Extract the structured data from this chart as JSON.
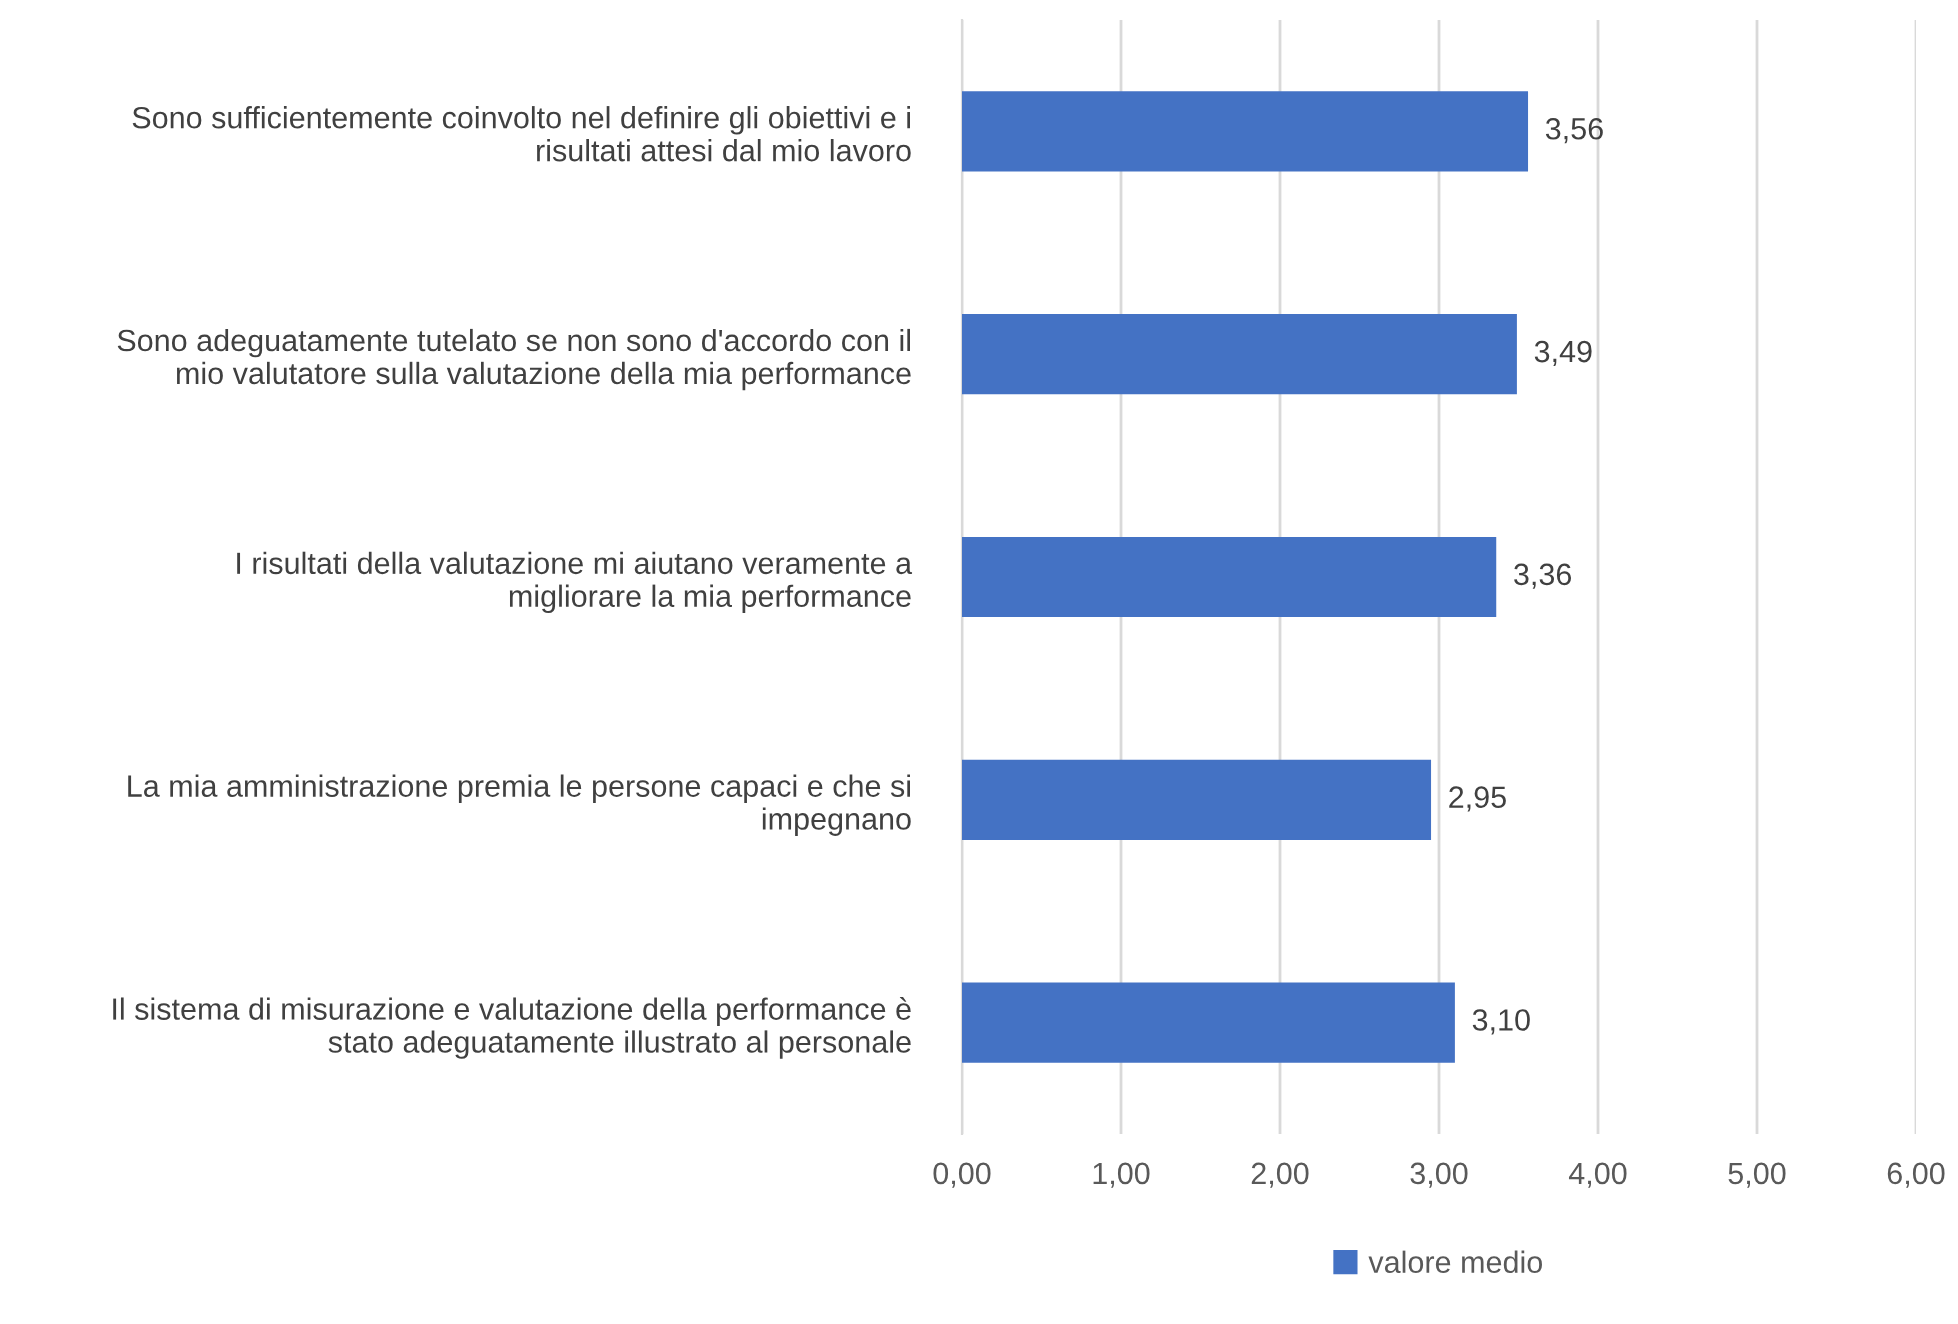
{
  "chart_data": {
    "type": "bar",
    "orientation": "horizontal",
    "categories": [
      "Sono sufficientemente coinvolto nel definire gli obiettivi e i\nrisultati attesi dal mio lavoro",
      "Sono adeguatamente tutelato se non sono d'accordo con il\nmio valutatore sulla valutazione della mia performance",
      "I risultati della valutazione mi aiutano veramente a\nmigliorare la mia performance",
      "La mia amministrazione premia le persone capaci e che si\nimpegnano",
      "Il sistema di misurazione e valutazione della performance è\nstato adeguatamente illustrato al personale"
    ],
    "series": [
      {
        "name": "valore medio",
        "color": "#4472c4",
        "values": [
          3.56,
          3.49,
          3.36,
          2.95,
          3.1
        ],
        "value_labels": [
          "3,56",
          "3,49",
          "3,36",
          "2,95",
          "3,10"
        ]
      }
    ],
    "xlim": [
      0,
      6
    ],
    "xticks": [
      {
        "value": 0,
        "label": "0,00"
      },
      {
        "value": 1,
        "label": "1,00"
      },
      {
        "value": 2,
        "label": "2,00"
      },
      {
        "value": 3,
        "label": "3,00"
      },
      {
        "value": 4,
        "label": "4,00"
      },
      {
        "value": 5,
        "label": "5,00"
      },
      {
        "value": 6,
        "label": "6,00"
      }
    ],
    "grid": "x",
    "legend": "bottom"
  }
}
